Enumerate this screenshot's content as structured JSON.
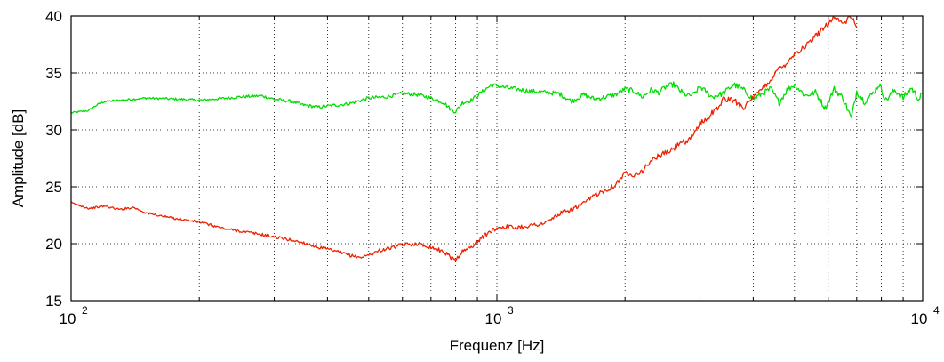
{
  "chart_data": {
    "type": "line",
    "title": "",
    "xlabel": "Frequenz [Hz]",
    "ylabel": "Amplitude [dB]",
    "xscale": "log",
    "xlim": [
      100,
      10000
    ],
    "ylim": [
      15,
      40
    ],
    "grid": "dotted, major and minor",
    "legend": "none",
    "x_ticks": [
      {
        "value": 100,
        "base": "10",
        "exp": "2"
      },
      {
        "value": 1000,
        "base": "10",
        "exp": "3"
      },
      {
        "value": 10000,
        "base": "10",
        "exp": "4"
      }
    ],
    "y_ticks": [
      15,
      20,
      25,
      30,
      35,
      40
    ],
    "series": [
      {
        "color": "#00dd00",
        "x": [
          100,
          110,
          115,
          120,
          130,
          150,
          180,
          200,
          250,
          280,
          300,
          330,
          350,
          380,
          400,
          450,
          500,
          550,
          600,
          650,
          700,
          750,
          780,
          800,
          830,
          870,
          920,
          950,
          970,
          1000,
          1050,
          1100,
          1200,
          1300,
          1400,
          1500,
          1600,
          1700,
          1800,
          1900,
          2000,
          2100,
          2200,
          2300,
          2400,
          2500,
          2600,
          2700,
          2800,
          2900,
          3000,
          3200,
          3400,
          3600,
          3800,
          4000,
          4200,
          4400,
          4600,
          4800,
          5000,
          5300,
          5600,
          5900,
          6200,
          6500,
          6800,
          7000,
          7300,
          7600,
          7900,
          8200,
          8600,
          9000,
          9400,
          9800,
          10000
        ],
        "values": [
          31.5,
          31.7,
          32.2,
          32.5,
          32.6,
          32.8,
          32.7,
          32.6,
          32.9,
          33.0,
          32.7,
          32.5,
          32.2,
          32.0,
          32.1,
          32.3,
          32.8,
          32.9,
          33.2,
          33.1,
          32.8,
          32.4,
          31.8,
          31.6,
          32.4,
          32.6,
          33.3,
          33.7,
          33.9,
          33.9,
          33.7,
          33.6,
          33.4,
          33.3,
          33.2,
          32.5,
          33.1,
          32.7,
          32.9,
          33.1,
          33.6,
          33.4,
          32.9,
          33.5,
          33.3,
          33.8,
          34.0,
          33.4,
          33.0,
          33.1,
          33.8,
          32.9,
          33.2,
          34.0,
          33.5,
          32.7,
          33.2,
          33.6,
          32.4,
          33.5,
          34.0,
          33.0,
          33.3,
          31.9,
          33.6,
          32.8,
          31.0,
          33.4,
          32.5,
          33.1,
          34.0,
          32.6,
          33.5,
          32.8,
          33.7,
          32.7,
          33.2
        ]
      },
      {
        "color": "#ee2200",
        "x": [
          100,
          110,
          120,
          130,
          140,
          150,
          170,
          200,
          230,
          250,
          280,
          300,
          330,
          350,
          380,
          400,
          430,
          460,
          480,
          500,
          530,
          560,
          600,
          650,
          700,
          750,
          780,
          800,
          830,
          870,
          900,
          950,
          1000,
          1050,
          1100,
          1200,
          1300,
          1400,
          1500,
          1600,
          1700,
          1800,
          1900,
          2000,
          2100,
          2200,
          2300,
          2400,
          2500,
          2600,
          2700,
          2800,
          2900,
          3000,
          3100,
          3200,
          3300,
          3400,
          3600,
          3800,
          4000,
          4200,
          4400,
          4600,
          4800,
          5000,
          5300,
          5600,
          5900,
          6200,
          6500,
          6800,
          7000
        ],
        "values": [
          23.6,
          23.1,
          23.3,
          23.0,
          23.2,
          22.7,
          22.3,
          21.9,
          21.3,
          21.1,
          20.8,
          20.6,
          20.3,
          20.1,
          19.7,
          19.5,
          19.2,
          18.9,
          18.8,
          19.0,
          19.4,
          19.6,
          19.9,
          20.0,
          19.7,
          19.3,
          18.8,
          18.6,
          19.3,
          19.7,
          20.2,
          20.9,
          21.4,
          21.5,
          21.4,
          21.6,
          21.8,
          22.6,
          23.0,
          23.5,
          24.3,
          24.7,
          25.2,
          26.2,
          26.1,
          26.4,
          27.3,
          27.7,
          28.0,
          28.3,
          29.0,
          28.8,
          29.7,
          30.6,
          30.9,
          31.5,
          31.9,
          32.7,
          32.6,
          32.0,
          32.8,
          33.6,
          34.4,
          35.4,
          35.9,
          36.7,
          37.3,
          38.2,
          39.1,
          40.0,
          39.3,
          40.0,
          39.0
        ]
      }
    ]
  }
}
